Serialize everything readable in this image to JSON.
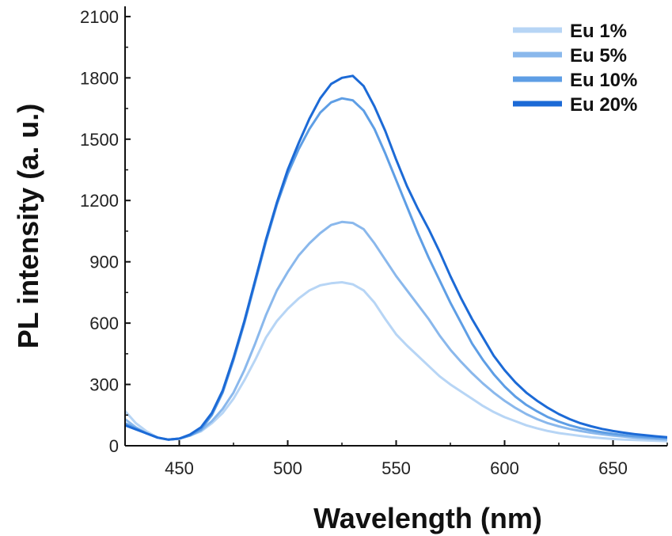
{
  "chart_data": {
    "type": "line",
    "xlabel": "Wavelength (nm)",
    "ylabel": "PL intensity (a. u.)",
    "xlim": [
      425,
      675
    ],
    "ylim": [
      0,
      2150
    ],
    "xticks": [
      450,
      500,
      550,
      600,
      650
    ],
    "yticks": [
      0,
      300,
      600,
      900,
      1200,
      1500,
      1800,
      2100
    ],
    "grid": false,
    "legend_position": "top-right",
    "x": [
      425,
      430,
      435,
      440,
      445,
      450,
      455,
      460,
      465,
      470,
      475,
      480,
      485,
      490,
      495,
      500,
      505,
      510,
      515,
      520,
      525,
      530,
      535,
      540,
      545,
      550,
      555,
      560,
      565,
      570,
      575,
      580,
      585,
      590,
      595,
      600,
      605,
      610,
      615,
      620,
      625,
      630,
      635,
      640,
      645,
      650,
      655,
      660,
      665,
      670,
      675
    ],
    "series": [
      {
        "name": "Eu 1%",
        "color": "#b7d5f5",
        "values": [
          170,
          110,
          70,
          40,
          30,
          35,
          50,
          70,
          110,
          160,
          230,
          320,
          420,
          530,
          610,
          670,
          720,
          760,
          785,
          795,
          800,
          790,
          760,
          700,
          620,
          545,
          490,
          440,
          390,
          340,
          300,
          265,
          230,
          195,
          165,
          140,
          120,
          100,
          85,
          72,
          62,
          55,
          48,
          42,
          37,
          33,
          30,
          28,
          26,
          24,
          22
        ]
      },
      {
        "name": "Eu 5%",
        "color": "#8ab8ec",
        "values": [
          130,
          90,
          60,
          40,
          30,
          35,
          50,
          75,
          120,
          180,
          260,
          370,
          500,
          640,
          760,
          850,
          930,
          990,
          1040,
          1080,
          1095,
          1090,
          1060,
          990,
          910,
          830,
          760,
          690,
          620,
          540,
          470,
          410,
          355,
          305,
          260,
          220,
          185,
          155,
          130,
          110,
          95,
          82,
          72,
          63,
          56,
          50,
          45,
          40,
          36,
          33,
          30
        ]
      },
      {
        "name": "Eu 10%",
        "color": "#5e9ee5",
        "values": [
          110,
          85,
          60,
          40,
          30,
          35,
          50,
          80,
          150,
          260,
          420,
          600,
          800,
          1000,
          1180,
          1330,
          1450,
          1550,
          1630,
          1680,
          1700,
          1690,
          1640,
          1550,
          1430,
          1300,
          1170,
          1040,
          920,
          810,
          700,
          600,
          500,
          420,
          350,
          290,
          240,
          200,
          168,
          140,
          118,
          100,
          86,
          75,
          66,
          58,
          52,
          47,
          43,
          40,
          37
        ]
      },
      {
        "name": "Eu 20%",
        "color": "#1c6ad6",
        "values": [
          100,
          80,
          60,
          40,
          30,
          35,
          55,
          90,
          160,
          270,
          430,
          610,
          810,
          1010,
          1190,
          1350,
          1480,
          1600,
          1700,
          1770,
          1800,
          1810,
          1760,
          1660,
          1540,
          1400,
          1270,
          1160,
          1060,
          950,
          830,
          720,
          620,
          530,
          440,
          370,
          310,
          260,
          220,
          185,
          155,
          130,
          110,
          95,
          82,
          72,
          64,
          57,
          51,
          46,
          42
        ]
      }
    ]
  }
}
